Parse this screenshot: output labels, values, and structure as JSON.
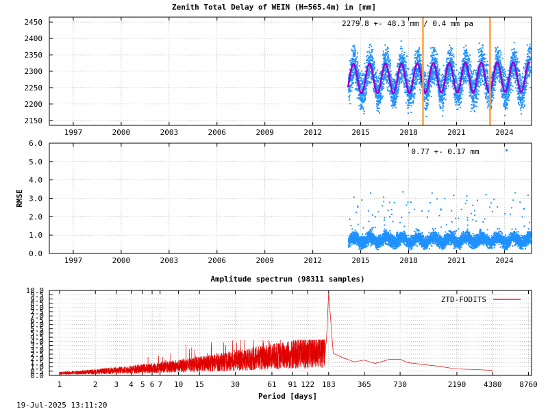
{
  "footer": {
    "timestamp": "19-Jul-2025 13:11:20"
  },
  "chart_data": [
    {
      "type": "scatter",
      "title": "Zenith Total Delay of WEIN (H=565.4m) in [mm]",
      "annotation": "2279.8 +-  48.3 mm /  0.4 mm pa",
      "x_ticks": [
        "1997",
        "2000",
        "2003",
        "2006",
        "2009",
        "2012",
        "2015",
        "2018",
        "2021",
        "2024"
      ],
      "y_ticks": [
        "2150",
        "2200",
        "2250",
        "2300",
        "2350",
        "2400",
        "2450"
      ],
      "xlim": [
        1995.5,
        2025.7
      ],
      "ylim": [
        2135,
        2465
      ],
      "grid": true,
      "data_start": 2014.2,
      "data_end": 2025.6,
      "mean": 2279.8,
      "std": 48.3,
      "trend_per_year": 0.4,
      "seasonal_amplitude": 45,
      "vertical_markers": [
        2018.9,
        2023.1
      ],
      "colors": {
        "points": "#1e90ff",
        "fit": "#9400d3",
        "markers": "#ffa040"
      }
    },
    {
      "type": "scatter",
      "title": "",
      "ylabel": "RMSE",
      "annotation": "0.77 +-  0.17 mm",
      "x_ticks": [
        "1997",
        "2000",
        "2003",
        "2006",
        "2009",
        "2012",
        "2015",
        "2018",
        "2021",
        "2024"
      ],
      "y_ticks": [
        "0.0",
        "1.0",
        "2.0",
        "3.0",
        "4.0",
        "5.0",
        "6.0"
      ],
      "xlim": [
        1995.5,
        2025.7
      ],
      "ylim": [
        0,
        6
      ],
      "grid": true,
      "data_start": 2014.2,
      "data_end": 2025.6,
      "mean": 0.77,
      "std": 0.17,
      "colors": {
        "points": "#1e90ff"
      }
    },
    {
      "type": "line",
      "title": "Amplitude spectrum (98311 samples)",
      "xlabel": "Period [days]",
      "x_scale": "log",
      "x_ticks": [
        "1",
        "2",
        "3",
        "4",
        "5",
        "6",
        "7",
        "10",
        "15",
        "30",
        "61",
        "91",
        "122",
        "183",
        "365",
        "730",
        "2190",
        "4380",
        "8760"
      ],
      "y_ticks": [
        "0.0",
        "0.5",
        "1.0",
        "1.5",
        "2.0",
        "2.5",
        "3.0",
        "3.5",
        "4.0",
        "4.5",
        "5.0",
        "5.5",
        "6.0",
        "6.5",
        "7.0",
        "7.5",
        "8.0",
        "8.5",
        "9.0",
        "9.5",
        "10.0"
      ],
      "xlim": [
        0.82,
        9300
      ],
      "ylim": [
        0,
        10
      ],
      "grid": true,
      "legend": "top-right",
      "series": [
        {
          "name": "ZTD-FODITS",
          "color": "#e00000",
          "points": [
            [
              183,
              9.7
            ],
            [
              200,
              2.6
            ],
            [
              240,
              2.1
            ],
            [
              300,
              1.6
            ],
            [
              365,
              1.8
            ],
            [
              450,
              1.4
            ],
            [
              600,
              1.9
            ],
            [
              730,
              1.9
            ],
            [
              850,
              1.5
            ],
            [
              1100,
              1.3
            ],
            [
              1500,
              1.1
            ],
            [
              2190,
              0.75
            ],
            [
              3000,
              0.7
            ],
            [
              4380,
              0.6
            ]
          ]
        }
      ]
    }
  ]
}
